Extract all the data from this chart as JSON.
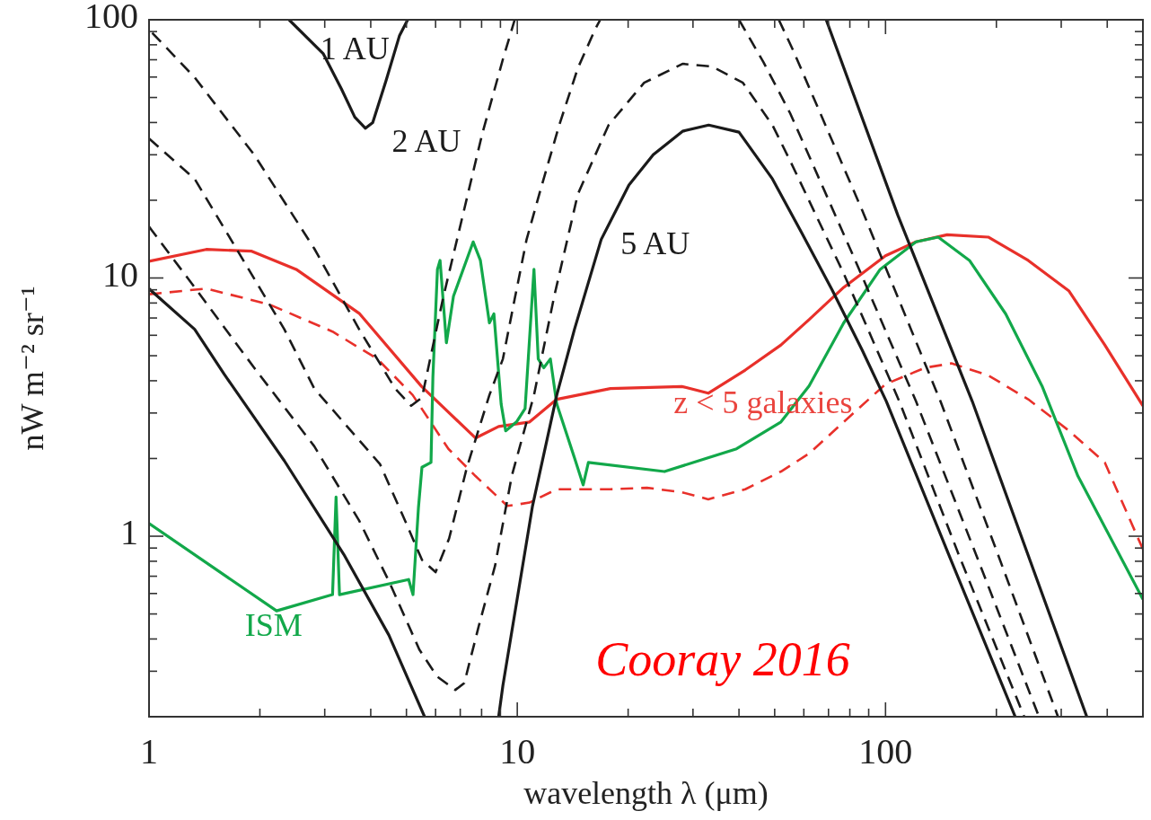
{
  "chart_data": {
    "type": "line",
    "log": "xy",
    "xlabel": "wavelength λ (μm)",
    "ylabel": "nW m⁻² sr⁻¹",
    "xlim": [
      1,
      500
    ],
    "ylim": [
      0.2,
      100
    ],
    "xticks": [
      1,
      {
        "value": 2,
        "label": null
      },
      {
        "value": 3,
        "label": null
      },
      {
        "value": 4,
        "label": null
      },
      {
        "value": 5,
        "label": null
      },
      {
        "value": 6,
        "label": null
      },
      {
        "value": 7,
        "label": null
      },
      {
        "value": 8,
        "label": null
      },
      {
        "value": 9,
        "label": null
      },
      10,
      {
        "value": 20,
        "label": null
      },
      {
        "value": 30,
        "label": null
      },
      {
        "value": 40,
        "label": null
      },
      {
        "value": 50,
        "label": null
      },
      {
        "value": 60,
        "label": null
      },
      {
        "value": 70,
        "label": null
      },
      {
        "value": 80,
        "label": null
      },
      {
        "value": 90,
        "label": null
      },
      100,
      {
        "value": 200,
        "label": null
      },
      {
        "value": 300,
        "label": null
      },
      {
        "value": 400,
        "label": null
      }
    ],
    "yticks": [
      {
        "value": 0.2,
        "label": null
      },
      {
        "value": 0.3,
        "label": null
      },
      {
        "value": 0.4,
        "label": null
      },
      {
        "value": 0.5,
        "label": null
      },
      {
        "value": 0.6,
        "label": null
      },
      {
        "value": 0.7,
        "label": null
      },
      {
        "value": 0.8,
        "label": null
      },
      {
        "value": 0.9,
        "label": null
      },
      1,
      {
        "value": 2,
        "label": null
      },
      {
        "value": 3,
        "label": null
      },
      {
        "value": 4,
        "label": null
      },
      {
        "value": 5,
        "label": null
      },
      {
        "value": 6,
        "label": null
      },
      {
        "value": 7,
        "label": null
      },
      {
        "value": 8,
        "label": null
      },
      {
        "value": 9,
        "label": null
      },
      10,
      {
        "value": 20,
        "label": null
      },
      {
        "value": 30,
        "label": null
      },
      {
        "value": 40,
        "label": null
      },
      {
        "value": 50,
        "label": null
      },
      {
        "value": 60,
        "label": null
      },
      {
        "value": 70,
        "label": null
      },
      {
        "value": 80,
        "label": null
      },
      {
        "value": 90,
        "label": null
      },
      100
    ],
    "grid": false,
    "legend": false,
    "marker": "none",
    "annotations": [
      "Cooray 2016"
    ],
    "series": [
      {
        "name": "z < 5 galaxies",
        "color": "#e8302a",
        "line_style": "solid",
        "x": [
          1,
          1.43,
          1.9,
          2.51,
          3.72,
          5.5,
          7.7,
          8.9,
          10.8,
          12.8,
          17.9,
          28,
          33,
          41.6,
          52,
          62,
          77,
          100,
          121,
          147,
          190,
          244,
          315,
          394,
          500
        ],
        "values": [
          11.6,
          12.9,
          12.7,
          10.8,
          7.3,
          3.8,
          2.4,
          2.66,
          2.77,
          3.39,
          3.73,
          3.8,
          3.58,
          4.4,
          5.5,
          6.9,
          9.2,
          12.2,
          13.8,
          14.7,
          14.4,
          11.7,
          8.9,
          5.5,
          3.2
        ]
      },
      {
        "color": "#e8302a",
        "line_style": "dashed",
        "x": [
          1,
          1.43,
          2.12,
          3.15,
          4.17,
          5.2,
          6.5,
          7.7,
          9.4,
          10.8,
          12.8,
          17.9,
          22.5,
          28,
          33,
          41.6,
          52,
          62,
          77,
          100,
          128,
          151,
          190,
          244,
          315,
          394,
          500
        ],
        "values": [
          8.65,
          9.1,
          7.9,
          6.2,
          4.86,
          3.52,
          2.18,
          1.71,
          1.31,
          1.35,
          1.52,
          1.52,
          1.54,
          1.48,
          1.39,
          1.52,
          1.78,
          2.09,
          2.77,
          3.88,
          4.49,
          4.67,
          4.2,
          3.39,
          2.56,
          1.93,
          0.89
        ]
      },
      {
        "name": "ISM",
        "color": "#12a84a",
        "line_style": "solid",
        "x": [
          1,
          2.22,
          3.15,
          3.22,
          3.29,
          5.07,
          5.21,
          5.39,
          5.51,
          5.83,
          5.9,
          6.07,
          6.17,
          6.42,
          6.71,
          7.59,
          7.94,
          8.4,
          8.64,
          9.04,
          9.3,
          9.95,
          10.5,
          11.1,
          11.4,
          11.8,
          12.3,
          12.8,
          14.3,
          15.1,
          15.6,
          25.1,
          39.4,
          52,
          62,
          77,
          96.7,
          121,
          139,
          169,
          212,
          266,
          333,
          500
        ],
        "values": [
          1.12,
          0.514,
          0.594,
          1.42,
          0.594,
          0.68,
          0.594,
          1.29,
          1.85,
          1.93,
          4.14,
          10.8,
          11.7,
          5.61,
          8.5,
          13.8,
          11.7,
          6.7,
          7.26,
          3.25,
          2.56,
          2.77,
          3.12,
          10.8,
          4.86,
          4.49,
          4.86,
          3.25,
          2.01,
          1.58,
          1.93,
          1.78,
          2.18,
          2.77,
          3.82,
          6.7,
          10.8,
          13.8,
          14.4,
          11.7,
          7.26,
          3.82,
          1.71,
          0.57
        ]
      },
      {
        "name": "1 AU",
        "color": "#1a1a1a",
        "line_style": "solid",
        "x": [
          2.4,
          2.97,
          3.33,
          3.62,
          3.87,
          4.05,
          4.4,
          4.79,
          5.04,
          20,
          69,
          108,
          172,
          352
        ],
        "values": [
          100,
          74,
          54,
          42,
          38,
          40,
          58,
          87,
          100,
          null,
          100,
          17.5,
          3.33,
          0.2
        ]
      },
      {
        "name": "2 AU",
        "color": "#1a1a1a",
        "line_style": "dashed",
        "x": [
          1.02,
          1.33,
          1.93,
          2.81,
          3.72,
          4.66,
          5.15,
          5.51,
          6.28,
          7.18,
          8.03,
          9.14,
          9.84,
          20,
          51.3,
          56.1,
          86.4,
          141,
          201,
          294
        ],
        "values": [
          89,
          59.8,
          30,
          13,
          6.33,
          3.73,
          3.2,
          3.44,
          8.3,
          18.5,
          36.1,
          70.3,
          100,
          null,
          100,
          76.2,
          18.3,
          3.33,
          0.866,
          0.2
        ]
      },
      {
        "color": "#1a1a1a",
        "line_style": "dashed",
        "x": [
          1,
          1.33,
          1.76,
          2.33,
          2.81,
          4.24,
          4.93,
          5.51,
          6.0,
          6.53,
          7.3,
          8.4,
          9.14,
          9.84,
          10.6,
          11.6,
          13,
          14.6,
          16.3,
          16.8,
          25,
          40,
          46.6,
          55.1,
          81.7,
          121,
          179,
          261
        ],
        "values": [
          34.7,
          24.2,
          12.4,
          6.33,
          3.73,
          1.9,
          1.17,
          0.81,
          0.726,
          0.98,
          1.85,
          3.52,
          4.86,
          8.3,
          14.1,
          22.3,
          39.1,
          64.9,
          92.3,
          100,
          null,
          100,
          68.6,
          43.4,
          12.2,
          3.33,
          0.8,
          0.2
        ]
      },
      {
        "color": "#1a1a1a",
        "line_style": "dashed",
        "x": [
          1,
          1.33,
          1.93,
          2.81,
          3.72,
          4.48,
          5.42,
          6.06,
          6.79,
          7.18,
          7.86,
          8.7,
          9.66,
          11.1,
          12.6,
          14.6,
          17.7,
          22.1,
          28.1,
          33.8,
          41,
          49.3,
          55.1,
          77,
          109,
          159,
          238
        ],
        "values": [
          15.8,
          9.2,
          4.49,
          2.23,
          1.15,
          0.67,
          0.364,
          0.286,
          0.254,
          0.27,
          0.449,
          0.767,
          1.71,
          3.52,
          8.5,
          21.1,
          39.1,
          57,
          67.5,
          65.9,
          57,
          39.1,
          28.4,
          10.4,
          3.33,
          0.83,
          0.2
        ]
      },
      {
        "name": "5 AU",
        "color": "#1a1a1a",
        "line_style": "solid",
        "x": [
          1,
          1.33,
          1.6,
          2.33,
          3.38,
          4.48,
          5.6,
          7,
          8.9,
          9.14,
          11,
          12.8,
          14.3,
          16.9,
          20.1,
          23.4,
          28.1,
          33.1,
          40,
          49.3,
          59.3,
          71.6,
          86.4,
          100.5,
          151,
          225
        ],
        "values": [
          9.08,
          6.33,
          4.24,
          1.96,
          0.85,
          0.414,
          0.2,
          null,
          0.2,
          0.264,
          1.31,
          3.52,
          6.33,
          14.1,
          22.9,
          30,
          37,
          39.1,
          36.7,
          24.2,
          14.9,
          9.0,
          5.26,
          3.33,
          0.8,
          0.2
        ]
      }
    ]
  }
}
